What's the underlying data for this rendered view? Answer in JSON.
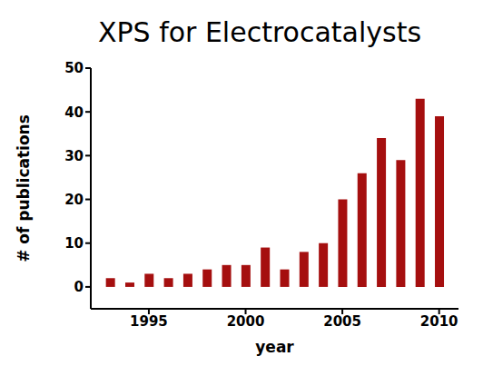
{
  "chart_data": {
    "type": "bar",
    "title": "XPS for Electrocatalysts",
    "x_label": "year",
    "y_label": "# of publications",
    "x": [
      1993,
      1994,
      1995,
      1996,
      1997,
      1998,
      1999,
      2000,
      2001,
      2002,
      2003,
      2004,
      2005,
      2006,
      2007,
      2008,
      2009,
      2010
    ],
    "values": [
      2,
      1,
      3,
      2,
      3,
      4,
      5,
      5,
      9,
      4,
      8,
      10,
      20,
      26,
      34,
      29,
      43,
      39
    ],
    "color": "#a50f0f",
    "xlim": [
      1992,
      2011
    ],
    "xticks": [
      1995,
      2000,
      2005,
      2010
    ],
    "ylim": [
      -5,
      50
    ],
    "yticks": [
      0,
      10,
      20,
      30,
      40,
      50
    ],
    "grid": false
  }
}
